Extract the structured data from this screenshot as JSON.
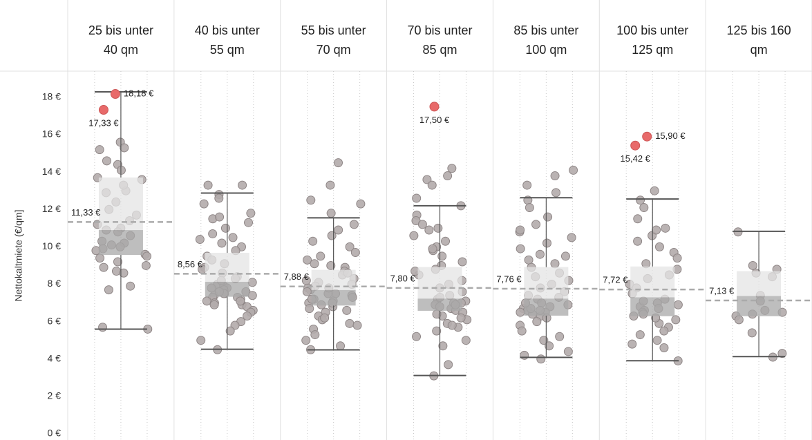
{
  "chart_data": {
    "type": "boxplot",
    "y_label": "Nettokaltmiete (€/qm]",
    "ylim": [
      0,
      19.4
    ],
    "yticks": [
      {
        "value": 0,
        "label": "0 €"
      },
      {
        "value": 2,
        "label": "2 €"
      },
      {
        "value": 4,
        "label": "4 €"
      },
      {
        "value": 6,
        "label": "6 €"
      },
      {
        "value": 8,
        "label": "8 €"
      },
      {
        "value": 10,
        "label": "10 €"
      },
      {
        "value": 12,
        "label": "12 €"
      },
      {
        "value": 14,
        "label": "14 €"
      },
      {
        "value": 16,
        "label": "16 €"
      },
      {
        "value": 18,
        "label": "18 €"
      }
    ],
    "grid": false,
    "point_color": "#b3abab",
    "outlier_color": "#e86a6a",
    "box_color": "#c8c8c8",
    "categories": [
      "25 bis unter\n40 qm",
      "40 bis unter\n55 qm",
      "55 bis unter\n70 qm",
      "70 bis unter\n85 qm",
      "85 bis unter\n100 qm",
      "100 bis unter\n125 qm",
      "125 bis 160\nqm"
    ],
    "boxes": [
      {
        "whisker_low": 5.6,
        "q1": 9.57,
        "median": 10.9,
        "q3": 13.71,
        "whisker_high": 18.29,
        "mean": 11.33,
        "mean_label": "11,33 €"
      },
      {
        "whisker_low": 4.52,
        "q1": 7.33,
        "median": 8.13,
        "q3": 9.68,
        "whisker_high": 12.88,
        "mean": 8.56,
        "mean_label": "8,56 €"
      },
      {
        "whisker_low": 4.49,
        "q1": 6.86,
        "median": 7.69,
        "q3": 8.77,
        "whisker_high": 11.55,
        "mean": 7.88,
        "mean_label": "7,88 €"
      },
      {
        "whisker_low": 3.12,
        "q1": 6.58,
        "median": 7.23,
        "q3": 8.92,
        "whisker_high": 12.2,
        "mean": 7.8,
        "mean_label": "7,80 €"
      },
      {
        "whisker_low": 4.09,
        "q1": 6.32,
        "median": 7.23,
        "q3": 8.92,
        "whisker_high": 12.63,
        "mean": 7.76,
        "mean_label": "7,76 €"
      },
      {
        "whisker_low": 3.91,
        "q1": 6.29,
        "median": 7.3,
        "q3": 8.95,
        "whisker_high": 12.56,
        "mean": 7.72,
        "mean_label": "7,72 €"
      },
      {
        "whisker_low": 4.13,
        "q1": 6.29,
        "median": 7.37,
        "q3": 8.7,
        "whisker_high": 10.83,
        "mean": 7.13,
        "mean_label": "7,13 €"
      }
    ],
    "outliers": [
      {
        "values": [
          18.18,
          17.33
        ],
        "value_labels": [
          "18,18 €",
          "17,33 €"
        ]
      },
      {
        "values": [],
        "value_labels": []
      },
      {
        "values": [],
        "value_labels": []
      },
      {
        "values": [
          17.5
        ],
        "value_labels": [
          "17,50 €"
        ]
      },
      {
        "values": [],
        "value_labels": []
      },
      {
        "values": [
          15.9,
          15.42
        ],
        "value_labels": [
          "15,90 €",
          "15,42 €"
        ]
      },
      {
        "values": [],
        "value_labels": []
      }
    ],
    "points": [
      [
        15.6,
        15.3,
        15.2,
        14.6,
        14.4,
        14.1,
        13.7,
        13.6,
        13.0,
        12.4,
        12.0,
        11.7,
        11.4,
        11.2,
        11.0,
        10.9,
        10.6,
        10.3,
        10.2,
        10.0,
        9.9,
        9.8,
        9.6,
        9.5,
        9.4,
        9.2,
        9.0,
        8.9,
        8.7,
        8.6,
        7.9,
        7.7,
        5.7,
        5.6,
        10.8,
        12.9,
        13.3,
        10.1
      ],
      [
        13.3,
        13.3,
        12.8,
        12.6,
        12.3,
        11.8,
        11.5,
        11.3,
        11.0,
        10.7,
        10.5,
        10.2,
        10.0,
        9.8,
        9.5,
        9.3,
        9.1,
        8.9,
        8.8,
        8.6,
        8.4,
        8.3,
        8.1,
        8.0,
        7.9,
        7.8,
        7.7,
        7.6,
        7.5,
        7.5,
        7.4,
        7.3,
        7.2,
        7.1,
        7.0,
        6.9,
        6.8,
        6.6,
        6.5,
        6.3,
        6.0,
        5.8,
        5.5,
        5.0,
        4.5,
        7.6,
        7.8,
        8.2,
        7.3,
        7.1,
        6.9,
        7.4,
        10.4,
        11.6
      ],
      [
        14.5,
        13.3,
        12.5,
        12.3,
        11.8,
        11.2,
        10.9,
        10.6,
        10.3,
        10.0,
        9.7,
        9.5,
        9.3,
        9.1,
        8.9,
        8.7,
        8.5,
        8.3,
        8.1,
        8.0,
        7.9,
        7.8,
        7.7,
        7.6,
        7.5,
        7.4,
        7.3,
        7.2,
        7.1,
        7.0,
        6.9,
        6.8,
        6.7,
        6.5,
        6.3,
        6.1,
        5.9,
        5.6,
        5.3,
        5.0,
        4.7,
        4.5,
        7.5,
        7.2,
        7.0,
        7.8,
        8.2,
        8.6,
        9.0,
        6.6,
        6.2,
        5.8
      ],
      [
        14.2,
        13.8,
        13.6,
        13.3,
        12.6,
        12.2,
        11.7,
        11.4,
        11.2,
        10.9,
        10.6,
        10.3,
        10.0,
        9.8,
        9.5,
        9.2,
        9.0,
        8.8,
        8.5,
        8.2,
        8.0,
        7.8,
        7.6,
        7.4,
        7.2,
        7.1,
        7.0,
        6.9,
        6.8,
        6.7,
        6.6,
        6.5,
        6.3,
        6.1,
        5.9,
        5.7,
        5.5,
        5.2,
        5.0,
        4.7,
        3.7,
        3.1,
        7.0,
        6.9,
        7.3,
        6.4,
        6.2,
        5.8,
        8.7,
        9.9,
        11.0
      ],
      [
        14.1,
        13.8,
        13.3,
        12.9,
        12.5,
        12.1,
        11.6,
        11.2,
        10.8,
        10.5,
        10.2,
        9.9,
        9.6,
        9.3,
        9.1,
        8.9,
        8.6,
        8.4,
        8.2,
        8.0,
        7.8,
        7.6,
        7.4,
        7.2,
        7.0,
        6.9,
        6.8,
        6.7,
        6.6,
        6.5,
        6.4,
        6.3,
        6.2,
        6.0,
        5.8,
        5.5,
        5.2,
        5.0,
        4.7,
        4.4,
        4.2,
        4.0,
        6.7,
        6.6,
        6.5,
        7.0,
        7.3,
        9.5,
        10.9
      ],
      [
        13.0,
        12.5,
        12.1,
        11.5,
        11.0,
        10.6,
        10.3,
        10.0,
        9.7,
        9.4,
        9.1,
        8.8,
        8.5,
        8.3,
        8.0,
        7.8,
        7.5,
        7.2,
        7.0,
        6.9,
        6.8,
        6.6,
        6.5,
        6.3,
        6.1,
        5.9,
        5.7,
        5.5,
        5.3,
        5.0,
        4.8,
        4.6,
        3.9,
        6.7,
        6.4,
        7.1,
        6.2,
        10.9
      ],
      [
        10.8,
        9.0,
        8.8,
        8.4,
        7.4,
        7.1,
        6.6,
        6.4,
        6.3,
        6.1,
        5.4,
        4.3,
        4.1,
        6.5,
        8.6
      ]
    ]
  }
}
